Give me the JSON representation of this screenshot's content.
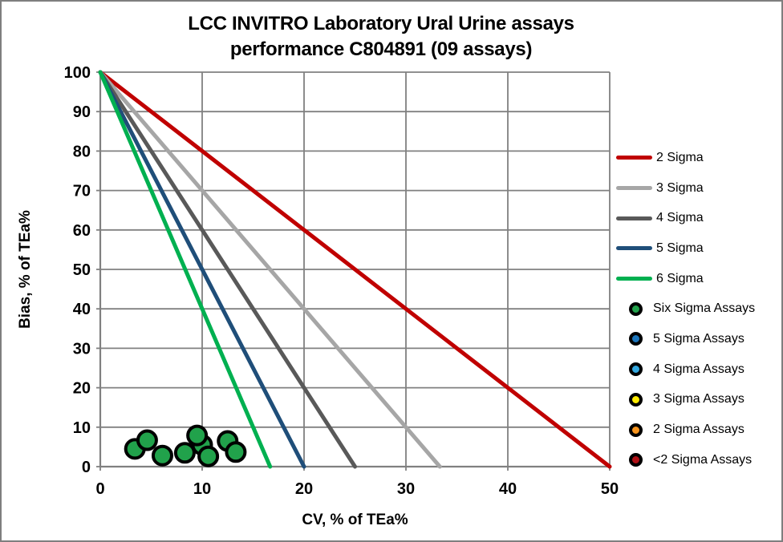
{
  "title": {
    "line1": "LCC INVITRO Laboratory Ural Urine assays",
    "line2": "performance C804891 (09 assays)"
  },
  "colors": {
    "background": "#ffffff",
    "frame_border": "#7f7f7f",
    "grid": "#808080",
    "text": "#000000",
    "marker_ring": "#000000"
  },
  "chart_data": {
    "type": "scatter",
    "title": "LCC INVITRO Laboratory Ural Urine assays performance C804891 (09 assays)",
    "xlabel": "CV, % of TEa%",
    "ylabel": "Bias, % of TEa%",
    "xlim": [
      0,
      50
    ],
    "ylim": [
      0,
      100
    ],
    "x_ticks": [
      0,
      10,
      20,
      30,
      40,
      50
    ],
    "y_ticks": [
      0,
      10,
      20,
      30,
      40,
      50,
      60,
      70,
      80,
      90,
      100
    ],
    "grid": true,
    "legend_position": "right",
    "sigma_lines": [
      {
        "name": "2 Sigma",
        "color": "#C00000",
        "y_start": 100,
        "x_intercept": 50
      },
      {
        "name": "3 Sigma",
        "color": "#A6A6A6",
        "y_start": 100,
        "x_intercept": 33.33
      },
      {
        "name": "4 Sigma",
        "color": "#595959",
        "y_start": 100,
        "x_intercept": 25
      },
      {
        "name": "5 Sigma",
        "color": "#1F4E79",
        "y_start": 100,
        "x_intercept": 20
      },
      {
        "name": "6 Sigma",
        "color": "#00B050",
        "y_start": 100,
        "x_intercept": 16.67
      }
    ],
    "series": [
      {
        "name": "Six Sigma Assays",
        "marker_color": "#21A24B",
        "points": [
          [
            3.4,
            4.5
          ],
          [
            4.6,
            6.7
          ],
          [
            6.1,
            2.8
          ],
          [
            8.3,
            3.5
          ],
          [
            10.0,
            5.5
          ],
          [
            9.5,
            7.9
          ],
          [
            10.6,
            2.6
          ],
          [
            12.5,
            6.5
          ],
          [
            13.3,
            3.7
          ]
        ]
      },
      {
        "name": "5 Sigma Assays",
        "marker_color": "#1B75BC",
        "points": []
      },
      {
        "name": "4 Sigma Assays",
        "marker_color": "#33A8DF",
        "points": []
      },
      {
        "name": "3 Sigma Assays",
        "marker_color": "#FFEB00",
        "points": []
      },
      {
        "name": "2 Sigma Assays",
        "marker_color": "#F7941D",
        "points": []
      },
      {
        "name": "<2 Sigma Assays",
        "marker_color": "#B01116",
        "points": []
      }
    ]
  }
}
